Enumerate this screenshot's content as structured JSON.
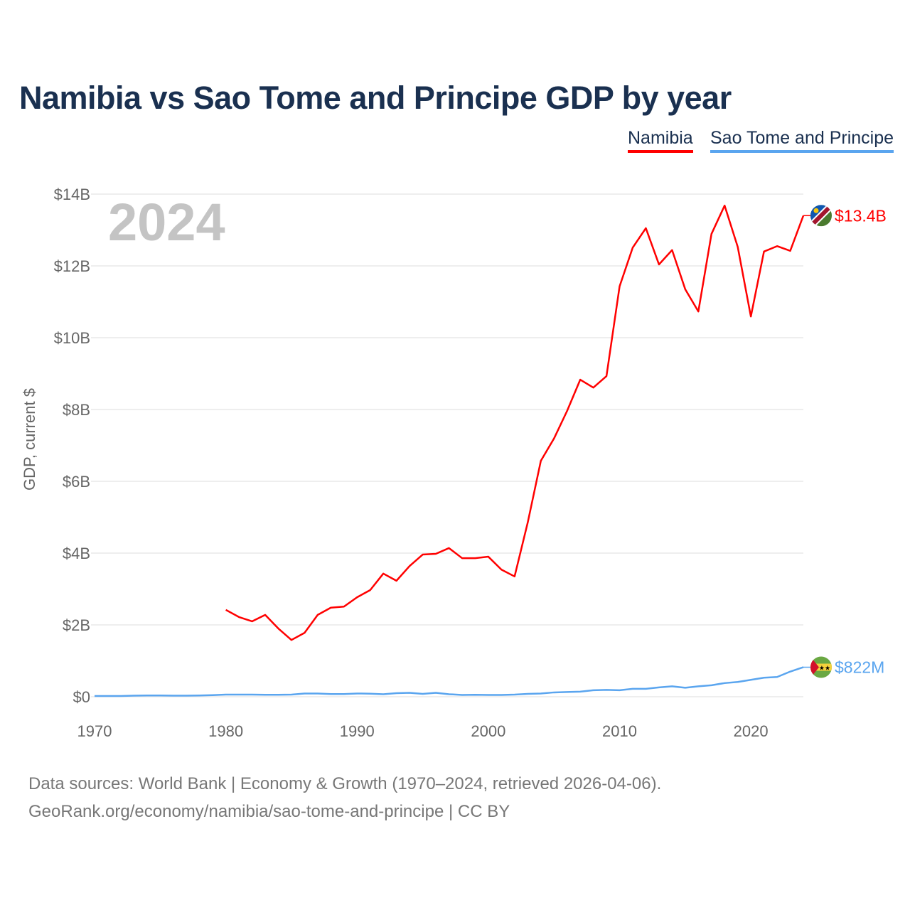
{
  "chart_data": {
    "type": "line",
    "title": "Namibia vs Sao Tome and Principe GDP by year",
    "xlabel": "",
    "ylabel": "GDP, current $",
    "xlim": [
      1970,
      2024
    ],
    "ylim": [
      0,
      14
    ],
    "y_unit": "billions USD",
    "x_ticks": [
      1970,
      1980,
      1990,
      2000,
      2010,
      2020
    ],
    "x_tick_labels": [
      "1970",
      "1980",
      "1990",
      "2000",
      "2010",
      "2020"
    ],
    "y_ticks": [
      0,
      2,
      4,
      6,
      8,
      10,
      12,
      14
    ],
    "y_tick_labels": [
      "$0",
      "$2B",
      "$4B",
      "$6B",
      "$8B",
      "$10B",
      "$12B",
      "$14B"
    ],
    "grid": true,
    "legend_position": "top-right",
    "current_year_label": "2024",
    "series": [
      {
        "name": "Namibia",
        "color": "#ff0000",
        "end_label": "$13.4B",
        "x": [
          1980,
          1981,
          1982,
          1983,
          1984,
          1985,
          1986,
          1987,
          1988,
          1989,
          1990,
          1991,
          1992,
          1993,
          1994,
          1995,
          1996,
          1997,
          1998,
          1999,
          2000,
          2001,
          2002,
          2003,
          2004,
          2005,
          2006,
          2007,
          2008,
          2009,
          2010,
          2011,
          2012,
          2013,
          2014,
          2015,
          2016,
          2017,
          2018,
          2019,
          2020,
          2021,
          2022,
          2023,
          2024
        ],
        "values": [
          2.42,
          2.22,
          2.1,
          2.28,
          1.9,
          1.58,
          1.78,
          2.28,
          2.48,
          2.51,
          2.77,
          2.97,
          3.43,
          3.23,
          3.64,
          3.96,
          3.98,
          4.14,
          3.86,
          3.86,
          3.9,
          3.54,
          3.35,
          4.85,
          6.57,
          7.19,
          7.96,
          8.83,
          8.61,
          8.93,
          11.43,
          12.51,
          13.05,
          12.04,
          12.44,
          11.35,
          10.73,
          12.89,
          13.68,
          12.53,
          10.59,
          12.4,
          12.55,
          12.42,
          13.4
        ]
      },
      {
        "name": "Sao Tome and Principe",
        "color": "#5aa5ef",
        "end_label": "$822M",
        "x": [
          1970,
          1971,
          1972,
          1973,
          1974,
          1975,
          1976,
          1977,
          1978,
          1979,
          1980,
          1981,
          1982,
          1983,
          1984,
          1985,
          1986,
          1987,
          1988,
          1989,
          1990,
          1991,
          1992,
          1993,
          1994,
          1995,
          1996,
          1997,
          1998,
          1999,
          2000,
          2001,
          2002,
          2003,
          2004,
          2005,
          2006,
          2007,
          2008,
          2009,
          2010,
          2011,
          2012,
          2013,
          2014,
          2015,
          2016,
          2017,
          2018,
          2019,
          2020,
          2021,
          2022,
          2023,
          2024
        ],
        "values": [
          0.02,
          0.02,
          0.02,
          0.03,
          0.035,
          0.035,
          0.03,
          0.03,
          0.035,
          0.045,
          0.06,
          0.06,
          0.06,
          0.055,
          0.055,
          0.06,
          0.09,
          0.09,
          0.075,
          0.075,
          0.09,
          0.085,
          0.07,
          0.1,
          0.11,
          0.08,
          0.11,
          0.07,
          0.05,
          0.055,
          0.05,
          0.05,
          0.06,
          0.08,
          0.09,
          0.12,
          0.13,
          0.14,
          0.18,
          0.19,
          0.18,
          0.22,
          0.22,
          0.26,
          0.29,
          0.25,
          0.29,
          0.32,
          0.38,
          0.41,
          0.47,
          0.53,
          0.55,
          0.7,
          0.822
        ]
      }
    ]
  },
  "source": {
    "line1": "Data sources: World Bank | Economy & Growth (1970–2024, retrieved 2026-04-06).",
    "line2": "GeoRank.org/economy/namibia/sao-tome-and-principe | CC BY"
  }
}
